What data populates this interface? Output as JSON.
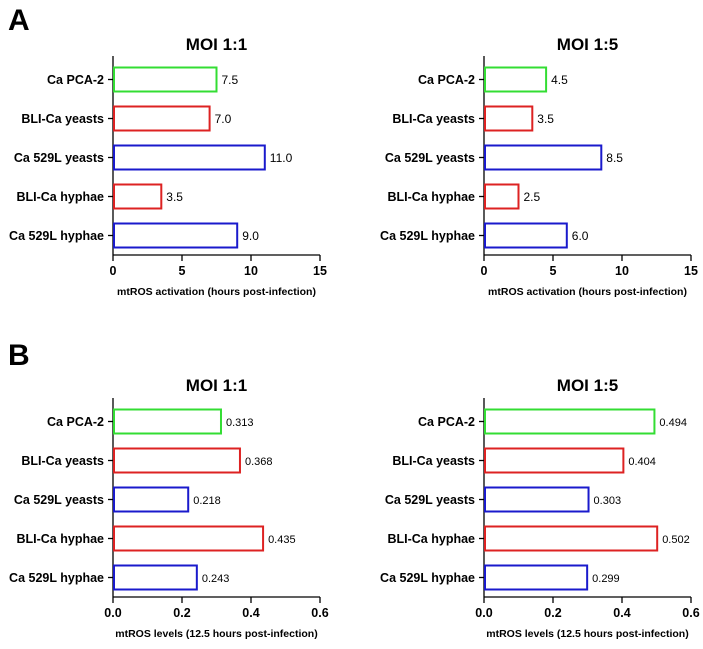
{
  "figure": {
    "panels": [
      {
        "letter": "A"
      },
      {
        "letter": "B"
      }
    ]
  },
  "colors": {
    "green": "#33dd33",
    "red": "#dd2222",
    "blue": "#1a1acc"
  },
  "chart_data": [
    {
      "type": "bar",
      "orientation": "horizontal",
      "panel": "A",
      "title": "MOI 1:1",
      "categories": [
        "Ca PCA-2",
        "BLI-Ca yeasts",
        "Ca 529L yeasts",
        "BLI-Ca hyphae",
        "Ca 529L hyphae"
      ],
      "values": [
        7.5,
        7.0,
        11.0,
        3.5,
        9.0
      ],
      "value_labels": [
        "7.5",
        "7.0",
        "11.0",
        "3.5",
        "9.0"
      ],
      "bar_colors": [
        "green",
        "red",
        "blue",
        "red",
        "blue"
      ],
      "xlabel": "mtROS activation (hours post-infection)",
      "xlim": [
        0,
        15
      ],
      "ticks": [
        0,
        5,
        10,
        15
      ],
      "tick_labels": [
        "0",
        "5",
        "10",
        "15"
      ],
      "grid": false
    },
    {
      "type": "bar",
      "orientation": "horizontal",
      "panel": "A",
      "title": "MOI 1:5",
      "categories": [
        "Ca PCA-2",
        "BLI-Ca yeasts",
        "Ca 529L yeasts",
        "BLI-Ca hyphae",
        "Ca 529L hyphae"
      ],
      "values": [
        4.5,
        3.5,
        8.5,
        2.5,
        6.0
      ],
      "value_labels": [
        "4.5",
        "3.5",
        "8.5",
        "2.5",
        "6.0"
      ],
      "bar_colors": [
        "green",
        "red",
        "blue",
        "red",
        "blue"
      ],
      "xlabel": "mtROS activation (hours post-infection)",
      "xlim": [
        0,
        15
      ],
      "ticks": [
        0,
        5,
        10,
        15
      ],
      "tick_labels": [
        "0",
        "5",
        "10",
        "15"
      ],
      "grid": false
    },
    {
      "type": "bar",
      "orientation": "horizontal",
      "panel": "B",
      "title": "MOI 1:1",
      "categories": [
        "Ca PCA-2",
        "BLI-Ca yeasts",
        "Ca 529L yeasts",
        "BLI-Ca hyphae",
        "Ca 529L hyphae"
      ],
      "values": [
        0.313,
        0.368,
        0.218,
        0.435,
        0.243
      ],
      "value_labels": [
        "0.313",
        "0.368",
        "0.218",
        "0.435",
        "0.243"
      ],
      "bar_colors": [
        "green",
        "red",
        "blue",
        "red",
        "blue"
      ],
      "xlabel": "mtROS levels (12.5 hours post-infection)",
      "xlim": [
        0,
        0.6
      ],
      "ticks": [
        0,
        0.2,
        0.4,
        0.6
      ],
      "tick_labels": [
        "0.0",
        "0.2",
        "0.4",
        "0.6"
      ],
      "grid": false
    },
    {
      "type": "bar",
      "orientation": "horizontal",
      "panel": "B",
      "title": "MOI 1:5",
      "categories": [
        "Ca PCA-2",
        "BLI-Ca yeasts",
        "Ca 529L yeasts",
        "BLI-Ca hyphae",
        "Ca 529L hyphae"
      ],
      "values": [
        0.494,
        0.404,
        0.303,
        0.502,
        0.299
      ],
      "value_labels": [
        "0.494",
        "0.404",
        "0.303",
        "0.502",
        "0.299"
      ],
      "bar_colors": [
        "green",
        "red",
        "blue",
        "red",
        "blue"
      ],
      "xlabel": "mtROS levels (12.5 hours post-infection)",
      "xlim": [
        0,
        0.6
      ],
      "ticks": [
        0,
        0.2,
        0.4,
        0.6
      ],
      "tick_labels": [
        "0.0",
        "0.2",
        "0.4",
        "0.6"
      ],
      "grid": false
    }
  ]
}
